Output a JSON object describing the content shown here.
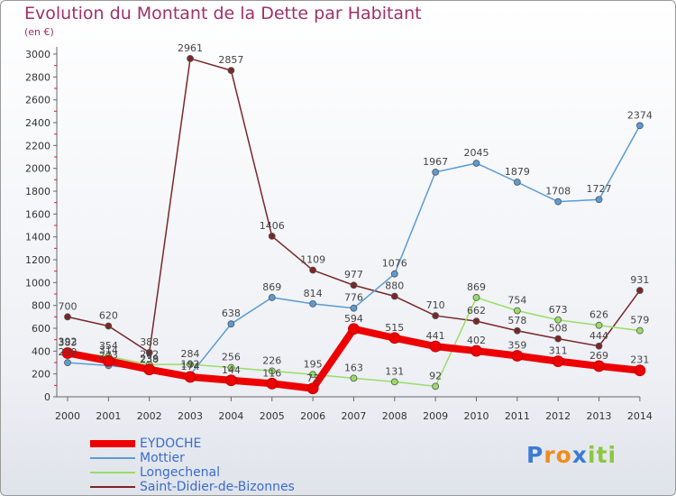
{
  "header": {
    "title": "Evolution du Montant de la Dette par Habitant",
    "subtitle": "(en €)"
  },
  "chart_data": {
    "type": "line",
    "title": "Evolution du Montant de la Dette par Habitant",
    "subtitle": "(en €)",
    "xlabel": "",
    "ylabel": "",
    "categories": [
      "2000",
      "2001",
      "2002",
      "2003",
      "2004",
      "2005",
      "2006",
      "2007",
      "2008",
      "2009",
      "2010",
      "2011",
      "2012",
      "2013",
      "2014"
    ],
    "ylim": [
      0,
      3000
    ],
    "yticks": [
      0,
      200,
      400,
      600,
      800,
      1000,
      1200,
      1400,
      1600,
      1800,
      2000,
      2200,
      2400,
      2600,
      2800,
      3000
    ],
    "grid": false,
    "legend_position": "bottom-left",
    "series": [
      {
        "name": "EYDOCHE",
        "color": "#ee0000",
        "width": 8,
        "values": [
          383,
          314,
          239,
          174,
          144,
          116,
          73,
          594,
          515,
          441,
          402,
          359,
          311,
          269,
          231
        ]
      },
      {
        "name": "Mottier",
        "color": "#5b9bd5",
        "width": 1.5,
        "values": [
          299,
          273,
          238,
          192,
          638,
          869,
          814,
          776,
          1076,
          1967,
          2045,
          1879,
          1708,
          1727,
          2374
        ]
      },
      {
        "name": "Longechenal",
        "color": "#99dd66",
        "width": 1.5,
        "values": [
          392,
          354,
          282,
          284,
          256,
          226,
          195,
          163,
          131,
          92,
          869,
          754,
          673,
          626,
          579
        ]
      },
      {
        "name": "Saint-Didier-de-Bizonnes",
        "color": "#7b2626",
        "width": 1.5,
        "values": [
          700,
          620,
          388,
          2961,
          2857,
          1406,
          1109,
          977,
          880,
          710,
          662,
          578,
          508,
          444,
          931
        ]
      }
    ]
  },
  "logo": {
    "letters": [
      "P",
      "r",
      "o",
      "x",
      "i",
      "t",
      "i"
    ],
    "colors": [
      "#3b7bd4",
      "#f08c1c",
      "#f08c1c",
      "#3b7bd4",
      "#8cc63f",
      "#8cc63f",
      "#8cc63f"
    ]
  }
}
